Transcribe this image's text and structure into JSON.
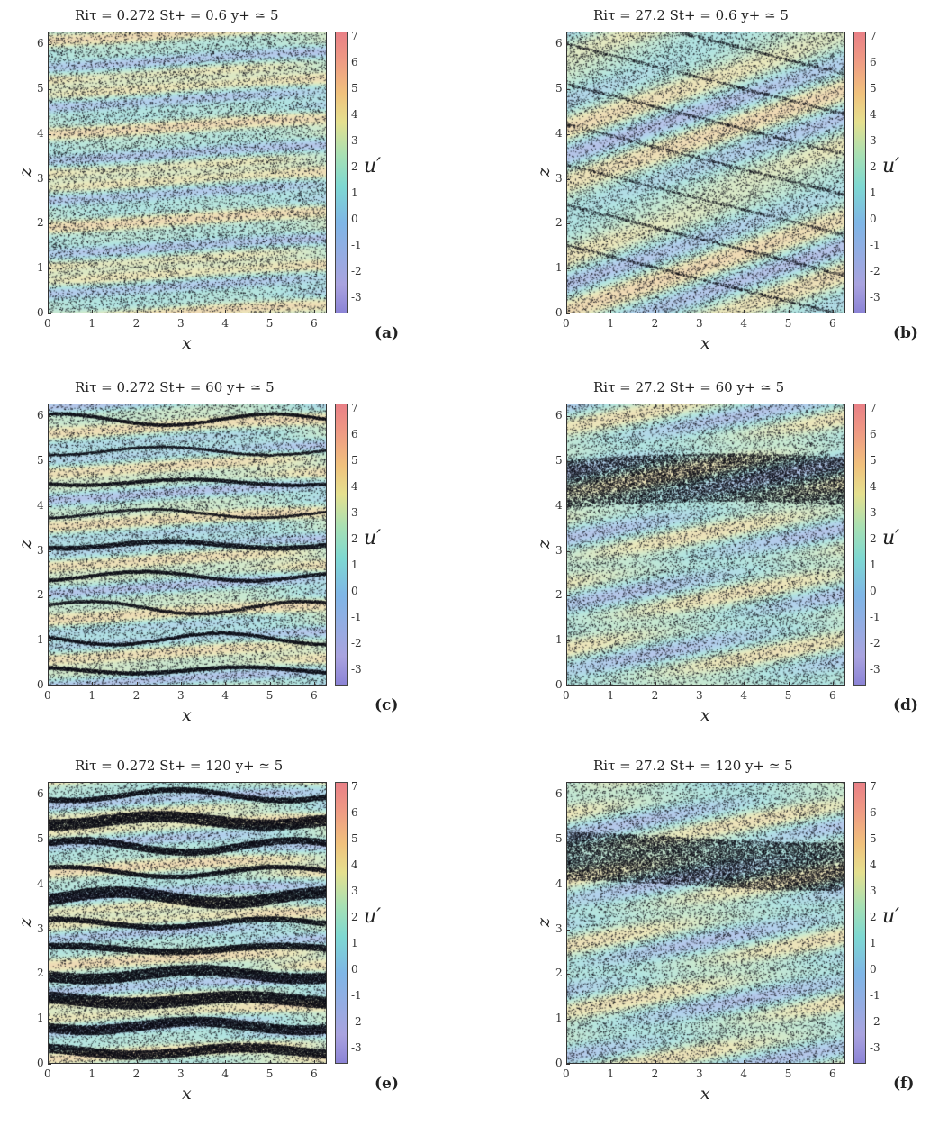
{
  "chart_data": {
    "type": "heatmap",
    "xlabel": "x",
    "ylabel": "z",
    "xlim": [
      0,
      6.283
    ],
    "ylim": [
      0,
      6.283
    ],
    "xticks": [
      "0",
      "1",
      "2",
      "3",
      "4",
      "5",
      "6"
    ],
    "yticks": [
      "0",
      "1",
      "2",
      "3",
      "4",
      "5",
      "6"
    ],
    "colorbar": {
      "label": "u′",
      "ticks": [
        "7",
        "6",
        "5",
        "4",
        "3",
        "2",
        "1",
        "0",
        "-1",
        "-2",
        "-3"
      ],
      "range": [
        -3.6,
        7.2
      ],
      "colors": [
        "#8c84d6",
        "#7fb6e6",
        "#7ed8d2",
        "#a7e0b4",
        "#e5e08f",
        "#f0c27d",
        "#e98086"
      ]
    },
    "panels": [
      {
        "id": "a",
        "label": "(a)",
        "Ri_tau": "0.272",
        "St_plus": "0.6",
        "title": "Riτ = 0.272  St+ = 0.6   y+ ≃ 5",
        "pattern": "streaks"
      },
      {
        "id": "b",
        "label": "(b)",
        "Ri_tau": "27.2",
        "St_plus": "0.6",
        "title": "Riτ = 27.2  St+ = 0.6   y+ ≃ 5",
        "pattern": "oblique"
      },
      {
        "id": "c",
        "label": "(c)",
        "Ri_tau": "0.272",
        "St_plus": "60",
        "title": "Riτ = 0.272  St+ = 60   y+ ≃ 5",
        "pattern": "streaks-lines"
      },
      {
        "id": "d",
        "label": "(d)",
        "Ri_tau": "27.2",
        "St_plus": "60",
        "title": "Riτ = 27.2  St+ = 60   y+ ≃ 5",
        "pattern": "band"
      },
      {
        "id": "e",
        "label": "(e)",
        "Ri_tau": "0.272",
        "St_plus": "120",
        "title": "Riτ = 0.272  St+ = 120   y+ ≃ 5",
        "pattern": "streaks-dense"
      },
      {
        "id": "f",
        "label": "(f)",
        "Ri_tau": "27.2",
        "St_plus": "120",
        "title": "Riτ = 27.2  St+ = 120   y+ ≃ 5",
        "pattern": "band"
      }
    ]
  }
}
